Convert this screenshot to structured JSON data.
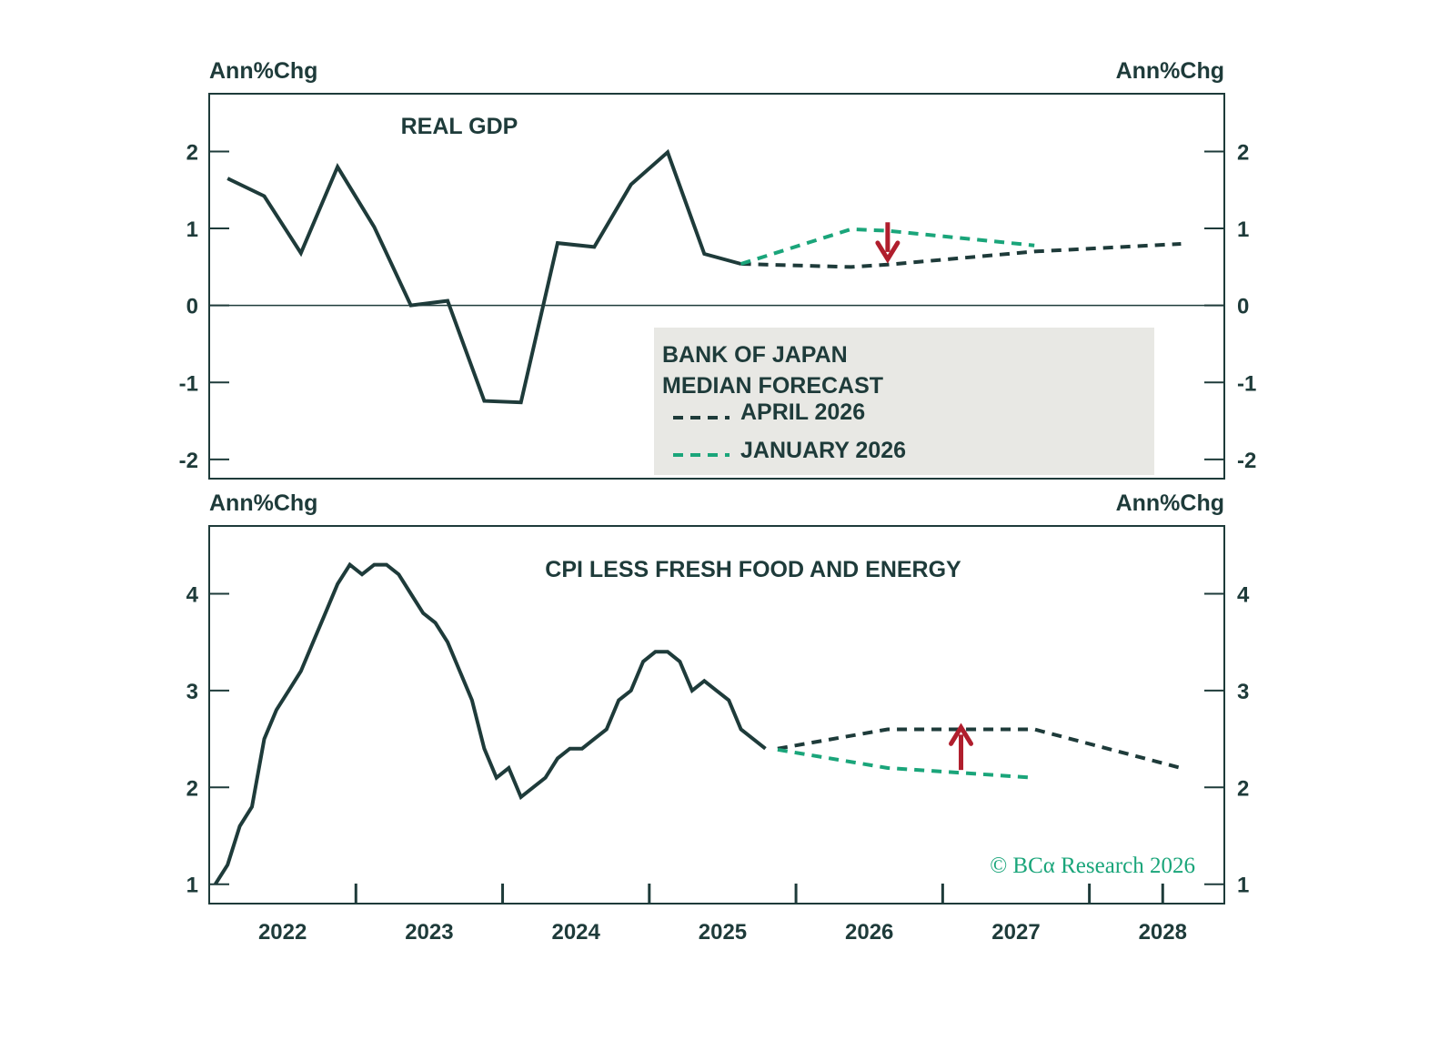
{
  "colors": {
    "actual": "#1e3b3a",
    "april_forecast": "#1e3b3a",
    "january_forecast": "#1aa57a",
    "arrow": "#b01e2d",
    "legend_bg": "#e8e8e4",
    "frame": "#1e3b3a"
  },
  "legend": {
    "title_line1": "BANK OF JAPAN",
    "title_line2": "MEDIAN FORECAST",
    "april_label": "APRIL 2026",
    "january_label": "JANUARY 2026"
  },
  "watermark": "© BCα Research 2026",
  "chart_data": [
    {
      "type": "line",
      "title": "REAL GDP",
      "ylabel_left": "Ann%Chg",
      "ylabel_right": "Ann%Chg",
      "ylim": [
        -2.25,
        2.75
      ],
      "yticks": [
        -2,
        -1,
        0,
        1,
        2
      ],
      "xlim": [
        2022.0,
        2028.92
      ],
      "xticks": [
        "2022",
        "2023",
        "2024",
        "2025",
        "2026",
        "2027",
        "2028"
      ],
      "zero_line": true,
      "series": [
        {
          "key": "actual",
          "style": "solid",
          "x": [
            "2022Q1",
            "2022Q2",
            "2022Q3",
            "2022Q4",
            "2023Q1",
            "2023Q2",
            "2023Q3",
            "2023Q4",
            "2024Q1",
            "2024Q2",
            "2024Q3",
            "2024Q4",
            "2025Q1",
            "2025Q2",
            "2025Q3"
          ],
          "values": [
            1.65,
            1.42,
            0.68,
            1.8,
            1.02,
            0.0,
            0.06,
            -1.24,
            -1.26,
            0.81,
            0.76,
            1.57,
            1.99,
            0.67,
            0.54
          ]
        },
        {
          "name": "APRIL 2026",
          "key": "april",
          "style": "dashed",
          "x": [
            "2025Q3",
            "2026Q2",
            "2026Q3",
            "2027Q3",
            "2028Q3"
          ],
          "values": [
            0.54,
            0.5,
            0.53,
            0.7,
            0.8
          ]
        },
        {
          "name": "JANUARY 2026",
          "key": "january",
          "style": "dashed",
          "x": [
            "2025Q3",
            "2026Q2",
            "2026Q3",
            "2027Q3"
          ],
          "values": [
            0.54,
            0.99,
            0.97,
            0.78
          ]
        }
      ],
      "annotations": [
        {
          "type": "arrow",
          "direction": "down",
          "x": "2026Q3",
          "from": 1.08,
          "to": 0.6
        }
      ]
    },
    {
      "type": "line",
      "title": "CPI LESS FRESH FOOD AND ENERGY",
      "ylabel_left": "Ann%Chg",
      "ylabel_right": "Ann%Chg",
      "ylim": [
        0.8,
        4.7
      ],
      "yticks": [
        1,
        2,
        3,
        4
      ],
      "xlim": [
        2022.0,
        2028.92
      ],
      "xticks": [
        "2022",
        "2023",
        "2024",
        "2025",
        "2026",
        "2027",
        "2028"
      ],
      "zero_line": false,
      "series": [
        {
          "key": "actual",
          "style": "solid",
          "x": [
            "2022-01",
            "2022-02",
            "2022-03",
            "2022-04",
            "2022-05",
            "2022-06",
            "2022-07",
            "2022-08",
            "2022-09",
            "2022-10",
            "2022-11",
            "2022-12",
            "2023-01",
            "2023-02",
            "2023-03",
            "2023-04",
            "2023-05",
            "2023-06",
            "2023-07",
            "2023-08",
            "2023-09",
            "2023-10",
            "2023-11",
            "2023-12",
            "2024-01",
            "2024-02",
            "2024-03",
            "2024-04",
            "2024-05",
            "2024-06",
            "2024-07",
            "2024-08",
            "2024-09",
            "2024-10",
            "2024-11",
            "2024-12",
            "2025-01",
            "2025-02",
            "2025-03",
            "2025-04",
            "2025-05",
            "2025-06",
            "2025-07",
            "2025-08",
            "2025-09",
            "2025-10"
          ],
          "values": [
            1.0,
            1.2,
            1.6,
            1.8,
            2.5,
            2.8,
            3.0,
            3.2,
            3.5,
            3.8,
            4.1,
            4.3,
            4.2,
            4.3,
            4.3,
            4.2,
            4.0,
            3.8,
            3.7,
            3.5,
            3.2,
            2.9,
            2.4,
            2.1,
            2.2,
            1.9,
            2.0,
            2.1,
            2.3,
            2.4,
            2.4,
            2.5,
            2.6,
            2.9,
            3.0,
            3.3,
            3.4,
            3.4,
            3.3,
            3.0,
            3.1,
            3.0,
            2.9,
            2.6,
            2.5,
            2.4
          ]
        },
        {
          "name": "APRIL 2026",
          "key": "april",
          "style": "dashed",
          "x": [
            "2025Q4",
            "2026Q3",
            "2027Q1",
            "2027Q3",
            "2028Q3"
          ],
          "values": [
            2.4,
            2.6,
            2.6,
            2.6,
            2.2
          ]
        },
        {
          "name": "JANUARY 2026",
          "key": "january",
          "style": "dashed",
          "x": [
            "2025Q4",
            "2026Q3",
            "2027Q1",
            "2027Q3"
          ],
          "values": [
            2.39,
            2.2,
            2.15,
            2.1
          ]
        }
      ],
      "annotations": [
        {
          "type": "arrow",
          "direction": "up",
          "x": "2027Q1",
          "from": 2.18,
          "to": 2.62
        }
      ]
    }
  ]
}
